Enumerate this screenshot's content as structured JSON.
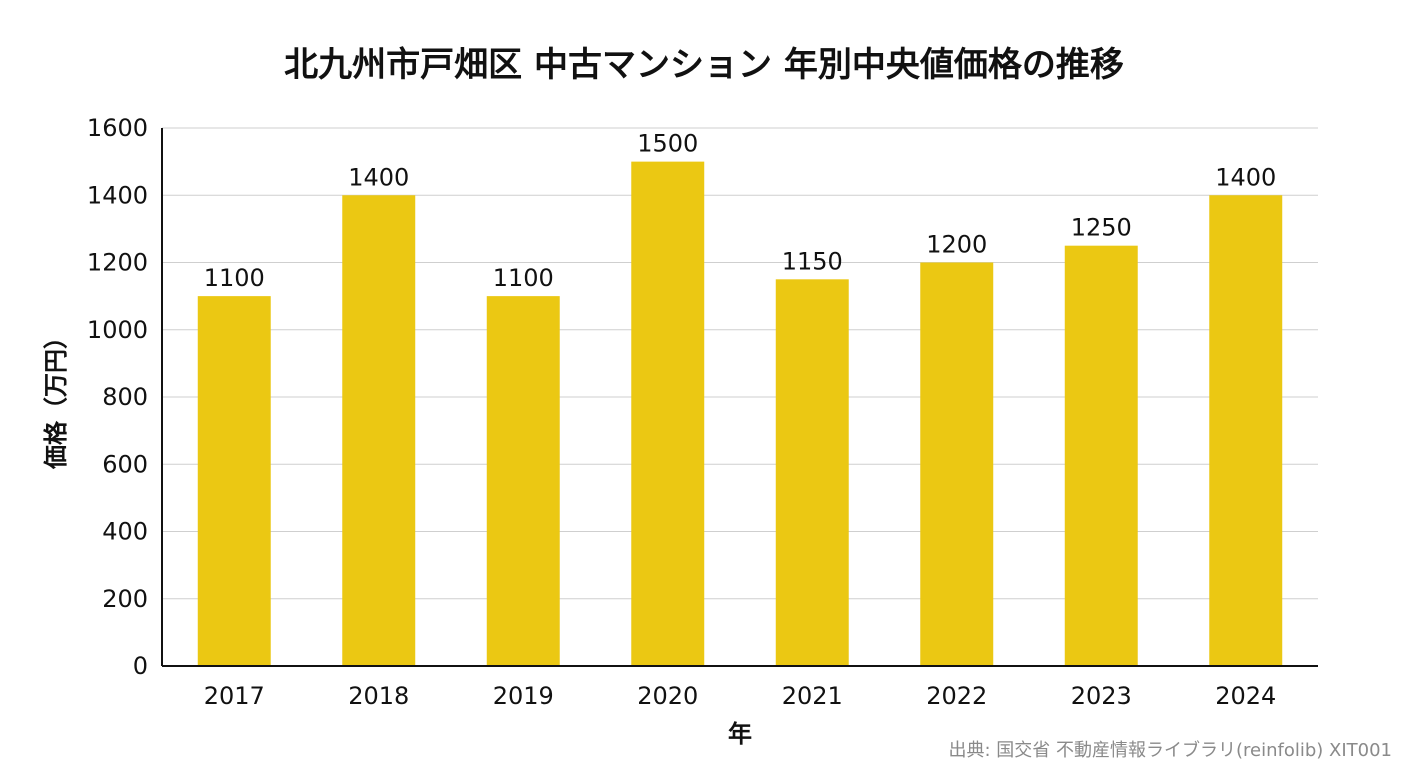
{
  "chart_data": {
    "type": "bar",
    "title": "北九州市戸畑区 中古マンション 年別中央値価格の推移",
    "xlabel": "年",
    "ylabel": "価格（万円）",
    "categories": [
      "2017",
      "2018",
      "2019",
      "2020",
      "2021",
      "2022",
      "2023",
      "2024"
    ],
    "values": [
      1100,
      1400,
      1100,
      1500,
      1150,
      1200,
      1250,
      1400
    ],
    "ylim": [
      0,
      1600
    ],
    "yticks": [
      0,
      200,
      400,
      600,
      800,
      1000,
      1200,
      1400,
      1600
    ],
    "grid": true,
    "bar_color": "#ebc813",
    "data_labels": true
  },
  "source": "出典: 国交省 不動産情報ライブラリ(reinfolib) XIT001"
}
